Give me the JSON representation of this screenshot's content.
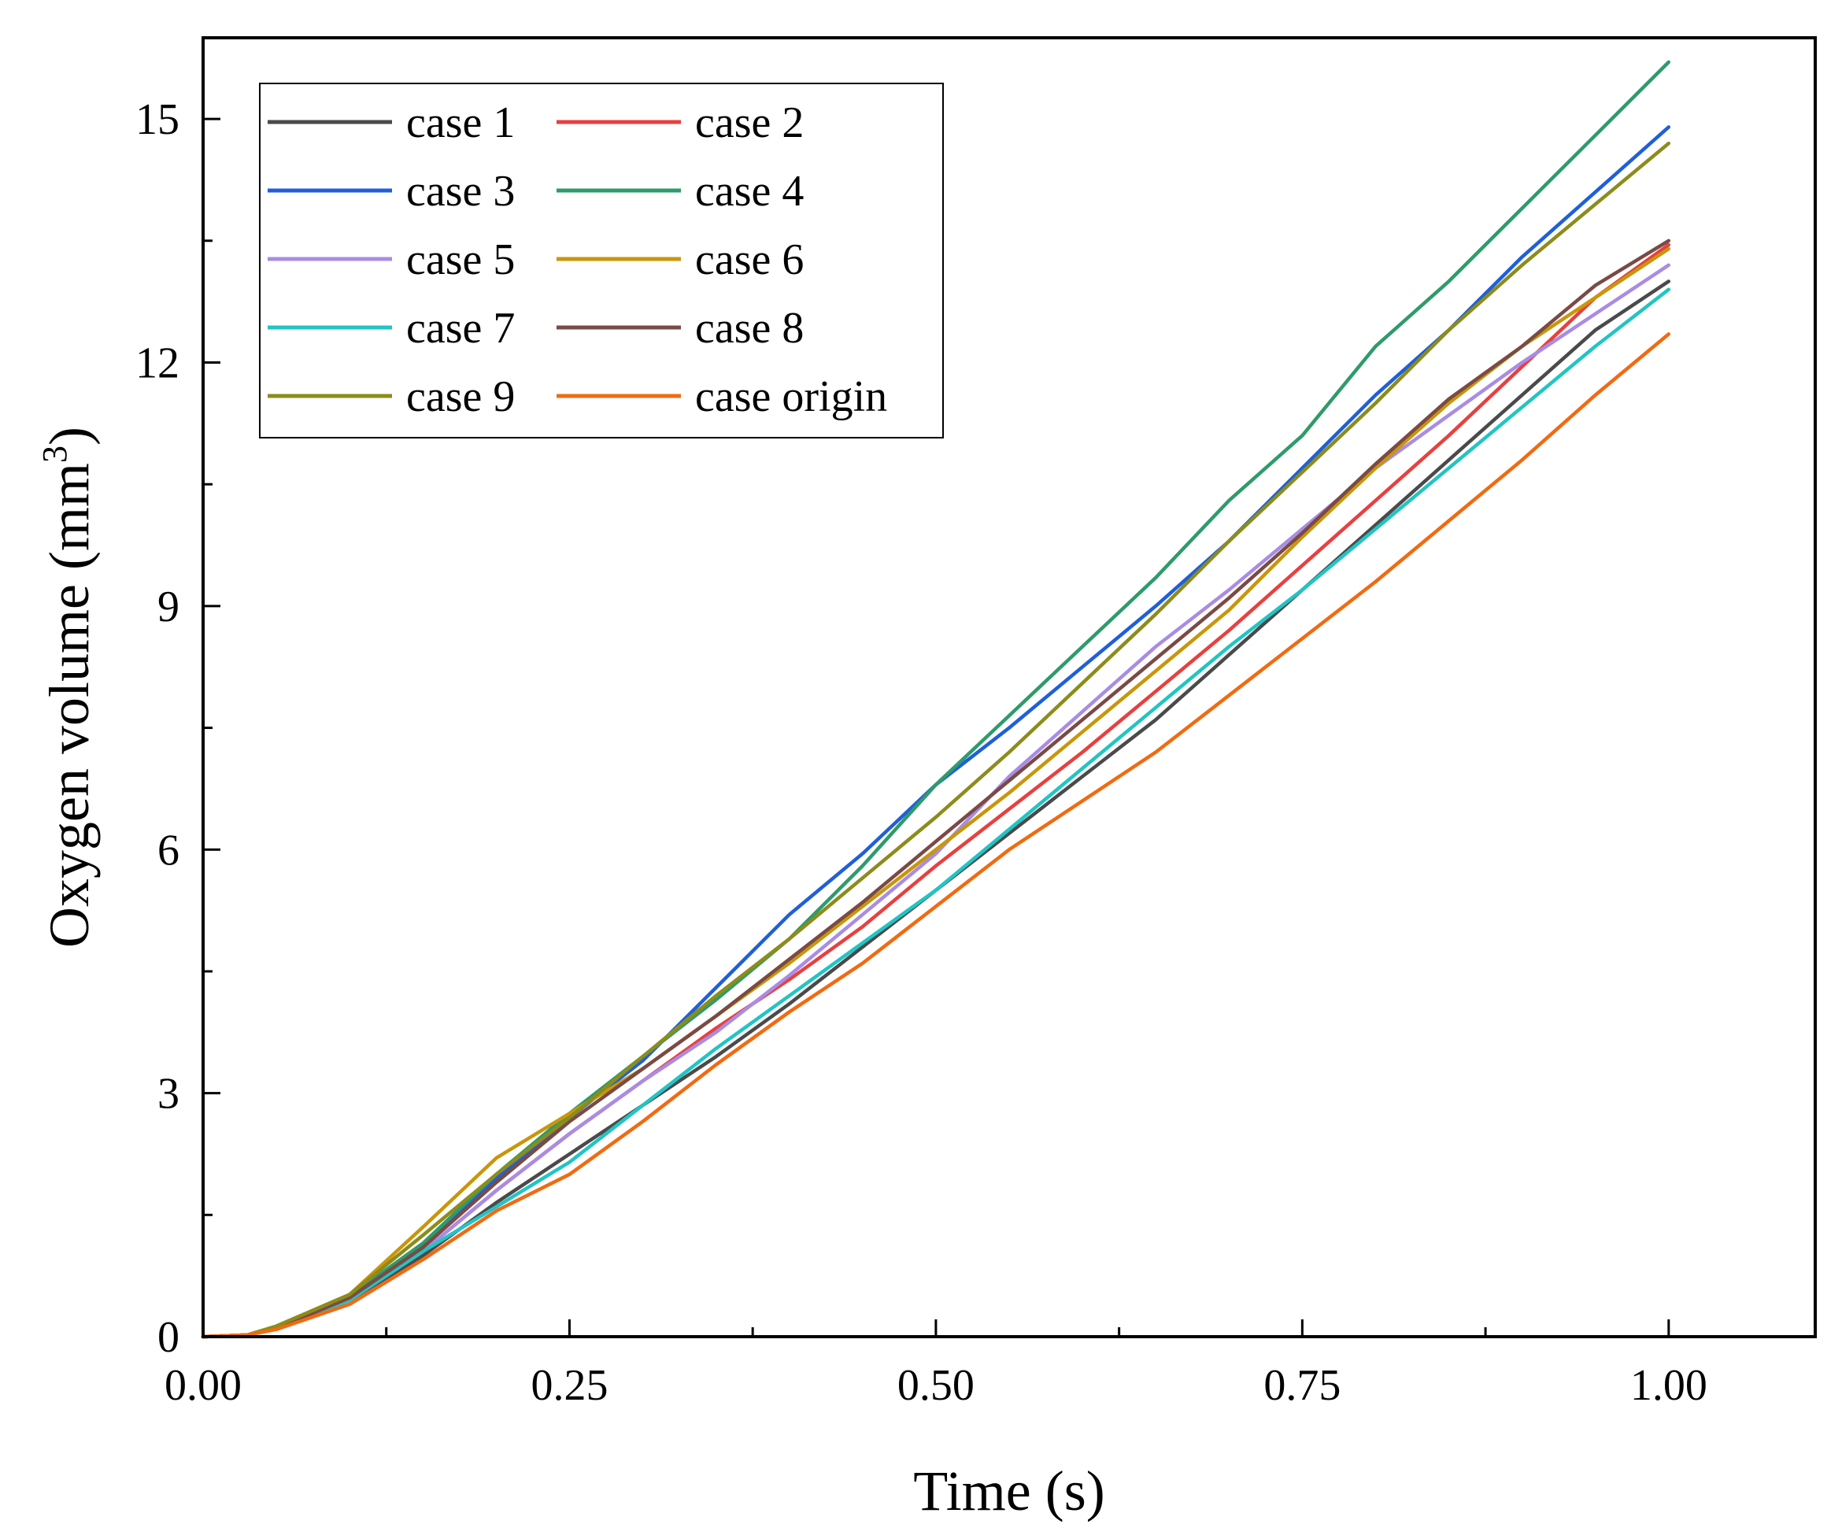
{
  "chart_data": {
    "type": "line",
    "xlabel": "Time (s)",
    "ylabel": {
      "text": "Oxygen volume (mm",
      "superscript": "3",
      "suffix": ")"
    },
    "xlim": [
      0,
      1.1
    ],
    "ylim": [
      0,
      16
    ],
    "x_ticks": [
      0.0,
      0.25,
      0.5,
      0.75,
      1.0
    ],
    "x_tick_labels": [
      "0.00",
      "0.25",
      "0.50",
      "0.75",
      "1.00"
    ],
    "x_minor_ticks": [
      0.125,
      0.375,
      0.625,
      0.875
    ],
    "y_ticks": [
      0,
      3,
      6,
      9,
      12,
      15
    ],
    "y_tick_labels": [
      "0",
      "3",
      "6",
      "9",
      "12",
      "15"
    ],
    "y_minor_ticks": [
      1.5,
      4.5,
      7.5,
      10.5,
      13.5
    ],
    "grid": false,
    "legend_position": "top-left",
    "legend_columns": 2,
    "x": [
      0,
      0.03,
      0.05,
      0.1,
      0.15,
      0.2,
      0.25,
      0.3,
      0.35,
      0.4,
      0.45,
      0.5,
      0.55,
      0.6,
      0.65,
      0.7,
      0.75,
      0.8,
      0.85,
      0.9,
      0.95,
      1.0
    ],
    "series": [
      {
        "name": "case 1",
        "color": "#4a4a4a",
        "values": [
          0,
          0.02,
          0.1,
          0.45,
          1.0,
          1.65,
          2.25,
          2.85,
          3.45,
          4.1,
          4.8,
          5.5,
          6.2,
          6.9,
          7.6,
          8.4,
          9.2,
          10.0,
          10.8,
          11.6,
          12.4,
          13.0
        ]
      },
      {
        "name": "case 2",
        "color": "#e8403f",
        "values": [
          0,
          0.02,
          0.1,
          0.45,
          1.05,
          1.8,
          2.5,
          3.15,
          3.8,
          4.4,
          5.05,
          5.8,
          6.5,
          7.2,
          7.95,
          8.7,
          9.5,
          10.3,
          11.1,
          11.95,
          12.8,
          13.45
        ]
      },
      {
        "name": "case 3",
        "color": "#1f5fd9",
        "values": [
          0,
          0.02,
          0.12,
          0.5,
          1.15,
          1.95,
          2.7,
          3.4,
          4.3,
          5.2,
          5.95,
          6.8,
          7.5,
          8.25,
          9.0,
          9.8,
          10.7,
          11.6,
          12.4,
          13.3,
          14.1,
          14.9
        ]
      },
      {
        "name": "case 4",
        "color": "#2e9b6a",
        "values": [
          0,
          0.02,
          0.12,
          0.5,
          1.15,
          2.0,
          2.75,
          3.45,
          4.15,
          4.9,
          5.8,
          6.8,
          7.65,
          8.5,
          9.35,
          10.3,
          11.1,
          12.2,
          13.0,
          13.9,
          14.8,
          15.7
        ]
      },
      {
        "name": "case 5",
        "color": "#a98ce3",
        "values": [
          0,
          0.02,
          0.1,
          0.48,
          1.05,
          1.8,
          2.5,
          3.15,
          3.75,
          4.45,
          5.2,
          5.95,
          6.9,
          7.7,
          8.5,
          9.2,
          9.95,
          10.7,
          11.35,
          12.0,
          12.6,
          13.2
        ]
      },
      {
        "name": "case 6",
        "color": "#c9960a",
        "values": [
          0,
          0.02,
          0.13,
          0.52,
          1.35,
          2.2,
          2.75,
          3.3,
          3.95,
          4.6,
          5.3,
          6.0,
          6.7,
          7.45,
          8.2,
          8.95,
          9.85,
          10.7,
          11.5,
          12.2,
          12.8,
          13.4
        ]
      },
      {
        "name": "case 7",
        "color": "#22c4c4",
        "values": [
          0,
          0.02,
          0.1,
          0.45,
          1.05,
          1.6,
          2.15,
          2.85,
          3.55,
          4.2,
          4.85,
          5.5,
          6.25,
          7.0,
          7.75,
          8.5,
          9.2,
          9.95,
          10.7,
          11.45,
          12.2,
          12.9
        ]
      },
      {
        "name": "case 8",
        "color": "#7a4a45",
        "values": [
          0,
          0.02,
          0.1,
          0.48,
          1.1,
          1.9,
          2.65,
          3.3,
          3.95,
          4.65,
          5.35,
          6.1,
          6.85,
          7.6,
          8.35,
          9.1,
          9.9,
          10.75,
          11.55,
          12.2,
          12.95,
          13.5
        ]
      },
      {
        "name": "case 9",
        "color": "#8c8c1a",
        "values": [
          0,
          0.02,
          0.13,
          0.52,
          1.25,
          2.0,
          2.7,
          3.45,
          4.2,
          4.9,
          5.65,
          6.4,
          7.2,
          8.05,
          8.9,
          9.8,
          10.65,
          11.5,
          12.4,
          13.2,
          13.95,
          14.7
        ]
      },
      {
        "name": "case origin",
        "color": "#f26a10",
        "values": [
          0,
          0.02,
          0.09,
          0.4,
          0.95,
          1.55,
          2.0,
          2.65,
          3.35,
          4.0,
          4.6,
          5.3,
          6.0,
          6.6,
          7.2,
          7.9,
          8.6,
          9.3,
          10.05,
          10.8,
          11.6,
          12.35
        ]
      }
    ]
  }
}
